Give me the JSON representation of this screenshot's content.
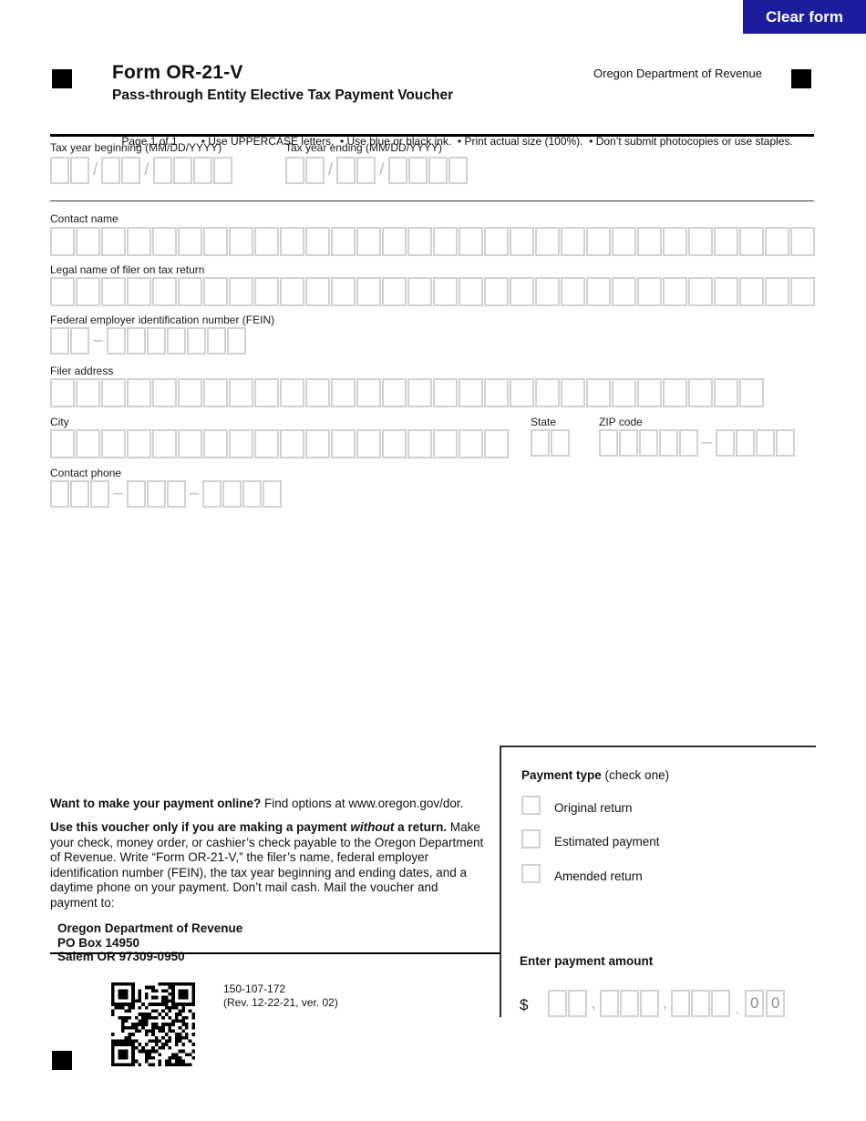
{
  "clear_form_button": "Clear form",
  "header": {
    "form_name": "Form OR-21-V",
    "form_subtitle": "Pass-through Entity Elective Tax Payment Voucher",
    "agency": "Oregon Department of Revenue",
    "page_info": "Page 1 of 1",
    "instructions": "• Use UPPERCASE letters.  • Use blue or black ink.  • Print actual size (100%).  • Don’t submit photocopies or use staples."
  },
  "fields": {
    "tax_year_beginning": {
      "label": "Tax year beginning (MM/DD/YYYY)",
      "groups": [
        2,
        2,
        4
      ],
      "separator": "/"
    },
    "tax_year_ending": {
      "label": "Tax year ending (MM/DD/YYYY)",
      "groups": [
        2,
        2,
        4
      ],
      "separator": "/"
    },
    "contact_name": {
      "label": "Contact name",
      "groups": [
        30
      ]
    },
    "legal_name": {
      "label": "Legal name of filer on tax return",
      "groups": [
        30
      ]
    },
    "fein": {
      "label": "Federal employer identification number (FEIN)",
      "groups": [
        2,
        7
      ],
      "separator": "–"
    },
    "filer_address": {
      "label": "Filer address",
      "groups": [
        28
      ]
    },
    "city": {
      "label": "City",
      "groups": [
        18
      ]
    },
    "state": {
      "label": "State",
      "groups": [
        2
      ]
    },
    "zip": {
      "label": "ZIP code",
      "groups": [
        5,
        4
      ],
      "separator": "–"
    },
    "contact_phone": {
      "label": "Contact phone",
      "groups": [
        3,
        3,
        4
      ],
      "separator": "–"
    }
  },
  "payment_type": {
    "title": "Payment type",
    "title_suffix": " (check one)",
    "options": [
      "Original return",
      "Estimated payment",
      "Amended return"
    ]
  },
  "payment_amount": {
    "title": "Enter payment amount",
    "currency": "$",
    "groups": [
      2,
      3,
      3
    ],
    "thousands_separator": ",",
    "decimal_separator": ".",
    "cents": [
      "0",
      "0"
    ]
  },
  "instructions_block": {
    "online_bold": "Want to make your payment online?",
    "online_rest": " Find options at www.oregon.gov/dor.",
    "voucher_bold_1": "Use this voucher only if you are making a payment ",
    "voucher_italic": "without",
    "voucher_bold_2": " a return.",
    "voucher_rest": " Make your check, money order, or cashier’s check payable to the Oregon Department of Revenue. Write “Form OR-21-V,” the filer’s name, federal employer identification number (FEIN), the tax year beginning and ending dates, and a daytime phone on your payment. Don’t mail cash. Mail the voucher and payment to:",
    "mail_address": [
      "Oregon Department of Revenue",
      "PO Box 14950",
      "Salem OR 97309-0950"
    ]
  },
  "footer": {
    "form_number": "150-107-172",
    "revision": "(Rev. 12-22-21, ver. 02)"
  },
  "colors": {
    "button_bg": "#1c1c9d",
    "box_border": "#d2d2d2"
  }
}
